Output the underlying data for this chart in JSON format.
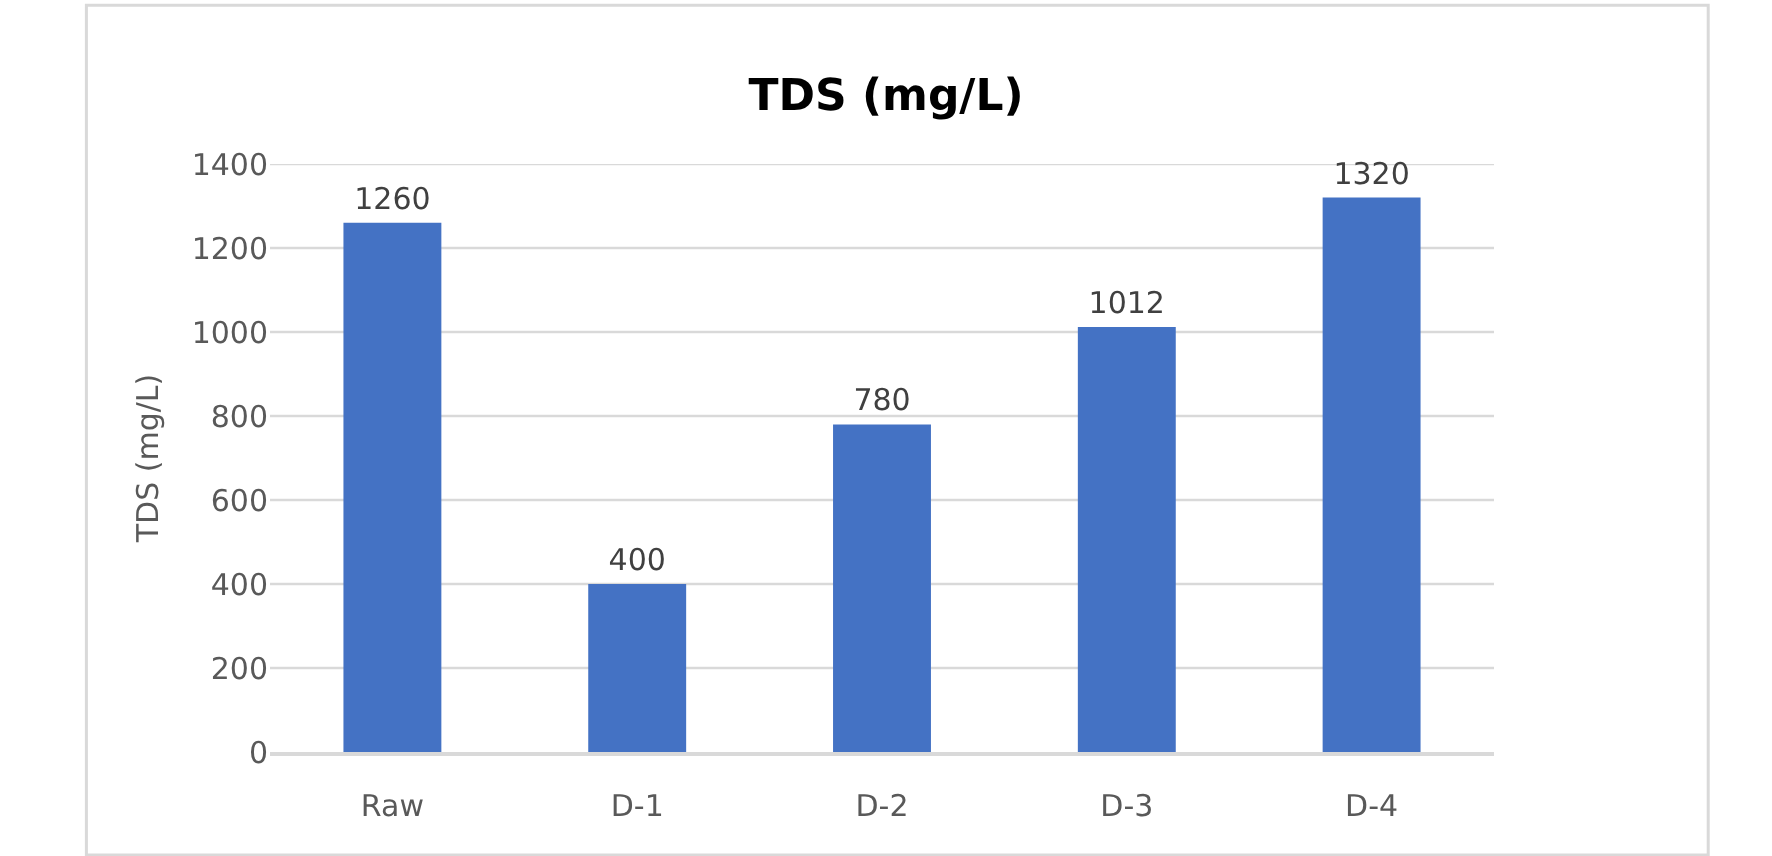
{
  "chart_data": {
    "type": "bar",
    "title": "TDS (mg/L)",
    "ylabel": "TDS (mg/L)",
    "categories": [
      "Raw",
      "D-1",
      "D-2",
      "D-3",
      "D-4"
    ],
    "values": [
      1260,
      400,
      780,
      1012,
      1320
    ],
    "color": "#4472c4",
    "ylim": [
      0,
      1400
    ],
    "yticks": [
      0,
      200,
      400,
      600,
      800,
      1000,
      1200,
      1400
    ],
    "grid": "y",
    "data_labels": true
  }
}
